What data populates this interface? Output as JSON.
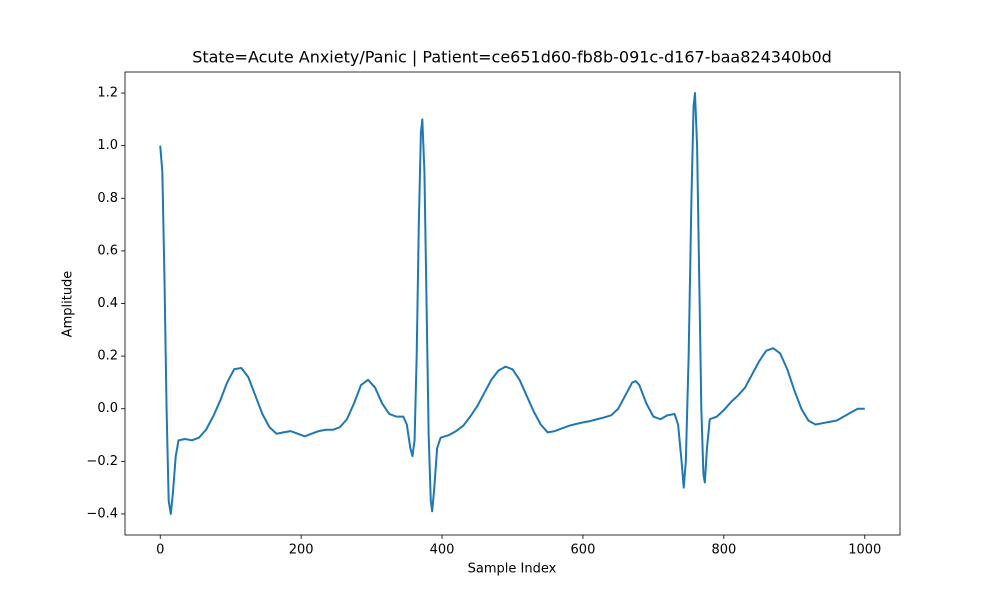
{
  "chart_data": {
    "type": "line",
    "title": "State=Acute Anxiety/Panic | Patient=ce651d60-fb8b-091c-d167-baa824340b0d",
    "xlabel": "Sample Index",
    "ylabel": "Amplitude",
    "x": [
      0,
      3,
      6,
      9,
      12,
      15,
      18,
      22,
      26,
      35,
      45,
      55,
      65,
      75,
      85,
      95,
      105,
      115,
      125,
      135,
      145,
      155,
      165,
      175,
      185,
      195,
      205,
      215,
      225,
      235,
      245,
      255,
      265,
      275,
      285,
      295,
      305,
      315,
      325,
      335,
      345,
      350,
      355,
      358,
      361,
      364,
      367,
      370,
      372,
      375,
      378,
      381,
      384,
      386,
      389,
      393,
      398,
      410,
      420,
      430,
      440,
      450,
      460,
      470,
      480,
      490,
      500,
      510,
      520,
      530,
      540,
      550,
      560,
      570,
      580,
      590,
      600,
      610,
      620,
      630,
      640,
      650,
      660,
      670,
      675,
      680,
      690,
      700,
      710,
      720,
      730,
      735,
      740,
      743,
      746,
      750,
      754,
      757,
      759,
      762,
      765,
      768,
      771,
      773,
      776,
      780,
      785,
      790,
      800,
      810,
      820,
      830,
      840,
      850,
      860,
      870,
      880,
      890,
      900,
      910,
      920,
      930,
      940,
      950,
      960,
      970,
      980,
      990,
      1000
    ],
    "series": [
      {
        "name": "ECG",
        "color": "#1f77b4",
        "values": [
          1.0,
          0.9,
          0.5,
          0.0,
          -0.35,
          -0.4,
          -0.32,
          -0.18,
          -0.12,
          -0.115,
          -0.12,
          -0.11,
          -0.08,
          -0.03,
          0.03,
          0.1,
          0.15,
          0.155,
          0.12,
          0.05,
          -0.02,
          -0.07,
          -0.095,
          -0.09,
          -0.085,
          -0.095,
          -0.105,
          -0.095,
          -0.085,
          -0.08,
          -0.08,
          -0.07,
          -0.04,
          0.02,
          0.09,
          0.11,
          0.08,
          0.02,
          -0.02,
          -0.03,
          -0.03,
          -0.06,
          -0.15,
          -0.18,
          -0.12,
          0.2,
          0.7,
          1.05,
          1.1,
          0.9,
          0.4,
          -0.1,
          -0.35,
          -0.39,
          -0.3,
          -0.15,
          -0.11,
          -0.1,
          -0.085,
          -0.065,
          -0.03,
          0.01,
          0.06,
          0.11,
          0.145,
          0.16,
          0.15,
          0.11,
          0.05,
          -0.01,
          -0.06,
          -0.09,
          -0.085,
          -0.075,
          -0.065,
          -0.058,
          -0.052,
          -0.047,
          -0.04,
          -0.033,
          -0.025,
          0.0,
          0.05,
          0.1,
          0.105,
          0.09,
          0.02,
          -0.03,
          -0.04,
          -0.025,
          -0.02,
          -0.06,
          -0.2,
          -0.3,
          -0.2,
          0.2,
          0.8,
          1.15,
          1.2,
          1.0,
          0.5,
          0.0,
          -0.25,
          -0.28,
          -0.15,
          -0.04,
          -0.035,
          -0.03,
          -0.005,
          0.025,
          0.05,
          0.08,
          0.13,
          0.18,
          0.22,
          0.23,
          0.21,
          0.15,
          0.07,
          0.0,
          -0.045,
          -0.06,
          -0.055,
          -0.05,
          -0.045,
          -0.03,
          -0.015,
          0.0,
          0.0
        ]
      }
    ],
    "xlim": [
      -50,
      1050
    ],
    "ylim": [
      -0.48,
      1.28
    ],
    "xticks": [
      0,
      200,
      400,
      600,
      800,
      1000
    ],
    "yticks": [
      {
        "value": -0.4,
        "label": "−0.4"
      },
      {
        "value": -0.2,
        "label": "−0.2"
      },
      {
        "value": 0,
        "label": "0.0"
      },
      0.2,
      0.4,
      0.6,
      0.8,
      {
        "value": 1,
        "label": "1.0"
      },
      1.2
    ],
    "grid": false
  }
}
